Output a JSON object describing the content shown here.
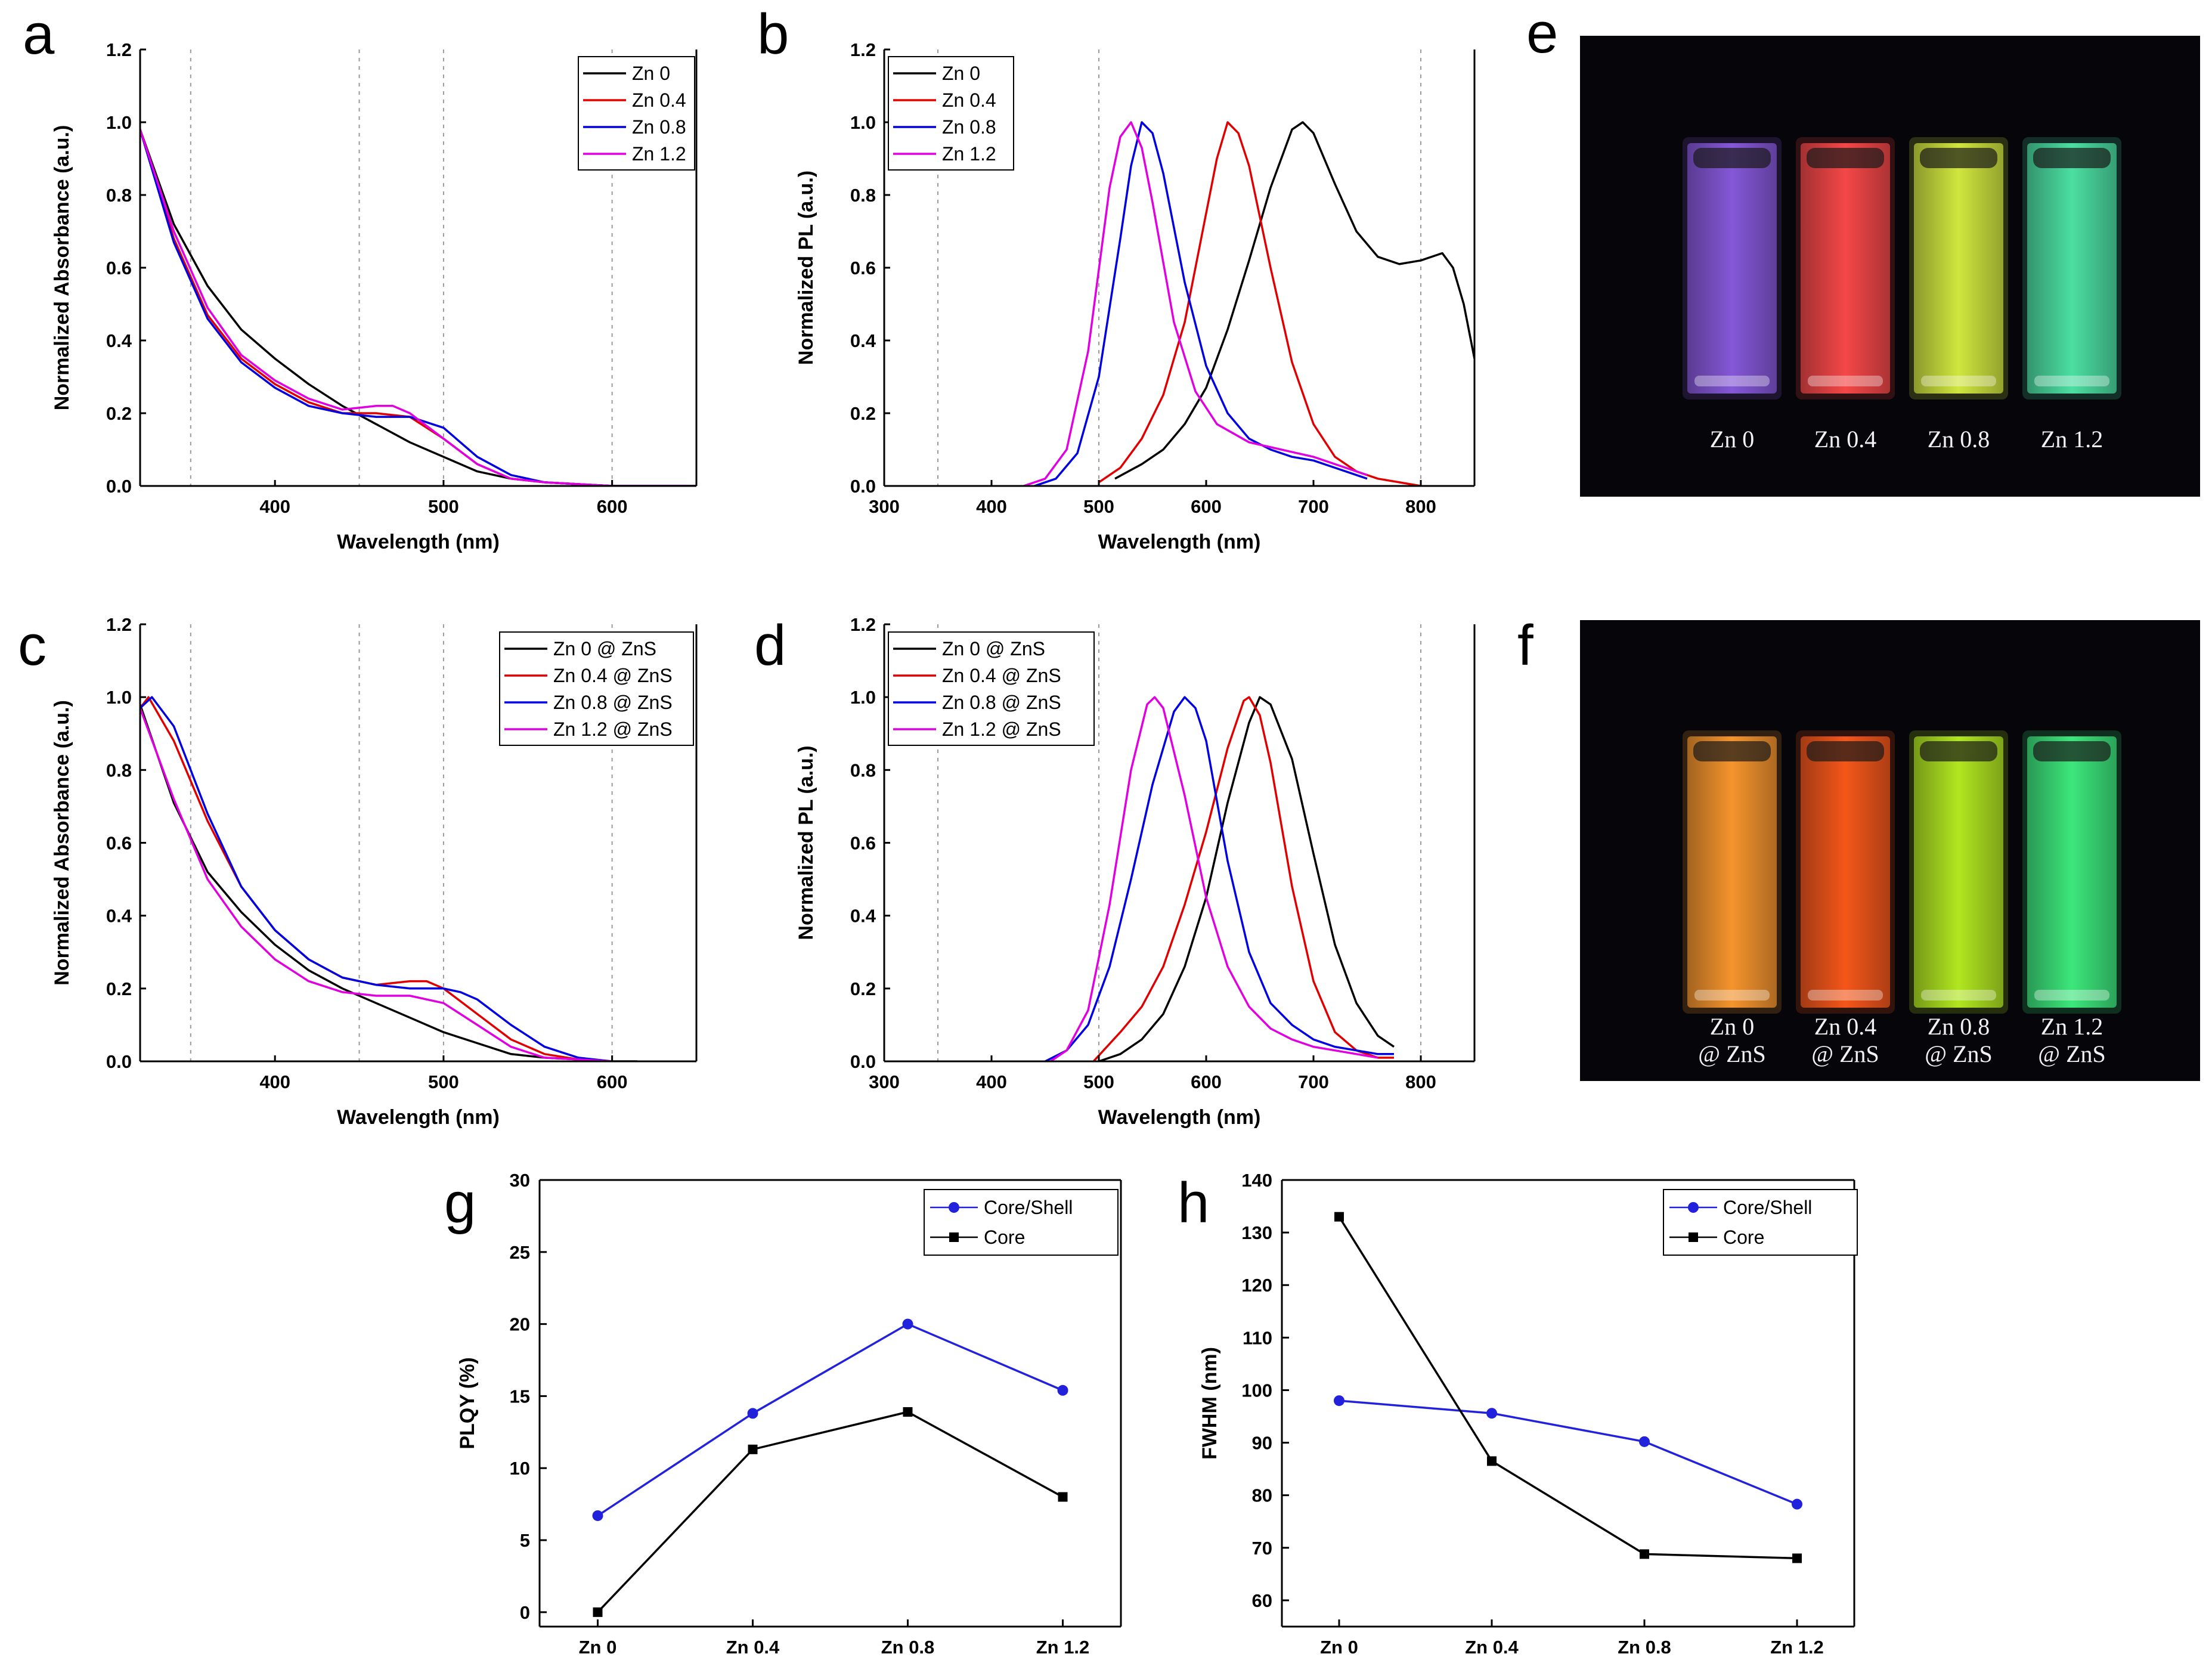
{
  "chart_data": [
    {
      "id": "a",
      "panel": "a",
      "type": "line",
      "xlabel": "Wavelength (nm)",
      "ylabel": "Normalized Absorbance (a.u.)",
      "xlim": [
        320,
        650
      ],
      "ylim": [
        0,
        1.2
      ],
      "xticks": [
        400,
        500,
        600
      ],
      "yticks": [
        0.0,
        0.2,
        0.4,
        0.6,
        0.8,
        1.0,
        1.2
      ],
      "xgrid": [
        350,
        450,
        500,
        600
      ],
      "legend_position": "top-right",
      "series": [
        {
          "name": "Zn 0",
          "color": "#000000",
          "x": [
            320,
            340,
            360,
            380,
            400,
            420,
            440,
            460,
            480,
            500,
            520,
            540,
            560,
            580,
            600,
            650
          ],
          "y": [
            0.98,
            0.72,
            0.55,
            0.43,
            0.35,
            0.28,
            0.22,
            0.17,
            0.12,
            0.08,
            0.04,
            0.02,
            0.01,
            0.005,
            0.0,
            0.0
          ]
        },
        {
          "name": "Zn 0.4",
          "color": "#e00000",
          "x": [
            320,
            340,
            360,
            380,
            400,
            420,
            440,
            460,
            480,
            500,
            520,
            540,
            560,
            580,
            600,
            650
          ],
          "y": [
            0.98,
            0.68,
            0.47,
            0.35,
            0.28,
            0.23,
            0.2,
            0.2,
            0.19,
            0.13,
            0.06,
            0.02,
            0.01,
            0.005,
            0.0,
            0.0
          ]
        },
        {
          "name": "Zn 0.8",
          "color": "#0000e0",
          "x": [
            320,
            340,
            360,
            380,
            400,
            420,
            440,
            460,
            480,
            500,
            520,
            540,
            560,
            580,
            600,
            650
          ],
          "y": [
            0.98,
            0.67,
            0.46,
            0.34,
            0.27,
            0.22,
            0.2,
            0.19,
            0.19,
            0.16,
            0.08,
            0.03,
            0.01,
            0.005,
            0.0,
            0.0
          ]
        },
        {
          "name": "Zn 1.2",
          "color": "#e000e0",
          "x": [
            320,
            340,
            360,
            380,
            400,
            420,
            440,
            460,
            470,
            480,
            500,
            520,
            540,
            560,
            600,
            650
          ],
          "y": [
            0.98,
            0.7,
            0.49,
            0.36,
            0.29,
            0.24,
            0.21,
            0.22,
            0.22,
            0.2,
            0.13,
            0.06,
            0.02,
            0.01,
            0.0,
            0.0
          ]
        }
      ]
    },
    {
      "id": "b",
      "panel": "b",
      "type": "line",
      "xlabel": "Wavelength (nm)",
      "ylabel": "Normalized PL (a.u.)",
      "xlim": [
        300,
        850
      ],
      "ylim": [
        0,
        1.2
      ],
      "xticks": [
        300,
        400,
        500,
        600,
        700,
        800
      ],
      "yticks": [
        0.0,
        0.2,
        0.4,
        0.6,
        0.8,
        1.0,
        1.2
      ],
      "xgrid": [
        350,
        500,
        800
      ],
      "legend_position": "top-left",
      "series": [
        {
          "name": "Zn 0",
          "color": "#000000",
          "x": [
            515,
            540,
            560,
            580,
            600,
            620,
            640,
            660,
            680,
            690,
            700,
            720,
            740,
            760,
            780,
            800,
            820,
            830,
            840,
            850
          ],
          "y": [
            0.02,
            0.06,
            0.1,
            0.17,
            0.27,
            0.43,
            0.62,
            0.82,
            0.98,
            1.0,
            0.97,
            0.83,
            0.7,
            0.63,
            0.61,
            0.62,
            0.64,
            0.6,
            0.5,
            0.35
          ]
        },
        {
          "name": "Zn 0.4",
          "color": "#e00000",
          "x": [
            500,
            520,
            540,
            560,
            580,
            600,
            610,
            620,
            630,
            640,
            660,
            680,
            700,
            720,
            740,
            760,
            780,
            800
          ],
          "y": [
            0.01,
            0.05,
            0.13,
            0.25,
            0.45,
            0.75,
            0.9,
            1.0,
            0.97,
            0.88,
            0.6,
            0.34,
            0.17,
            0.08,
            0.04,
            0.02,
            0.01,
            0.0
          ]
        },
        {
          "name": "Zn 0.8",
          "color": "#0000e0",
          "x": [
            440,
            460,
            480,
            500,
            520,
            530,
            540,
            550,
            560,
            580,
            600,
            620,
            640,
            660,
            680,
            700,
            720,
            750
          ],
          "y": [
            0.0,
            0.02,
            0.09,
            0.3,
            0.68,
            0.88,
            1.0,
            0.97,
            0.86,
            0.56,
            0.33,
            0.2,
            0.13,
            0.1,
            0.08,
            0.07,
            0.05,
            0.02
          ]
        },
        {
          "name": "Zn 1.2",
          "color": "#e000e0",
          "x": [
            430,
            450,
            470,
            490,
            510,
            520,
            530,
            540,
            550,
            570,
            590,
            610,
            640,
            670,
            700,
            730,
            750
          ],
          "y": [
            0.0,
            0.02,
            0.1,
            0.37,
            0.82,
            0.96,
            1.0,
            0.93,
            0.78,
            0.45,
            0.26,
            0.17,
            0.12,
            0.1,
            0.08,
            0.05,
            0.03
          ]
        }
      ]
    },
    {
      "id": "c",
      "panel": "c",
      "type": "line",
      "xlabel": "Wavelength (nm)",
      "ylabel": "Normalized Absorbance (a.u.)",
      "xlim": [
        320,
        650
      ],
      "ylim": [
        0,
        1.2
      ],
      "xticks": [
        400,
        500,
        600
      ],
      "yticks": [
        0.0,
        0.2,
        0.4,
        0.6,
        0.8,
        1.0,
        1.2
      ],
      "xgrid": [
        350,
        450,
        500,
        600
      ],
      "legend_position": "top-right",
      "series": [
        {
          "name": "Zn 0 @ ZnS",
          "color": "#000000",
          "x": [
            320,
            340,
            360,
            380,
            400,
            420,
            440,
            460,
            480,
            500,
            520,
            540,
            560,
            580,
            600,
            615
          ],
          "y": [
            0.98,
            0.71,
            0.52,
            0.41,
            0.32,
            0.25,
            0.2,
            0.16,
            0.12,
            0.08,
            0.05,
            0.02,
            0.01,
            0.005,
            0.0,
            0.0
          ]
        },
        {
          "name": "Zn 0.4 @ ZnS",
          "color": "#e00000",
          "x": [
            320,
            325,
            340,
            360,
            380,
            400,
            420,
            440,
            460,
            480,
            490,
            500,
            520,
            540,
            560,
            580,
            600
          ],
          "y": [
            0.97,
            1.0,
            0.88,
            0.66,
            0.48,
            0.36,
            0.28,
            0.23,
            0.21,
            0.22,
            0.22,
            0.2,
            0.13,
            0.06,
            0.02,
            0.005,
            0.0
          ]
        },
        {
          "name": "Zn 0.8 @ ZnS",
          "color": "#0000e0",
          "x": [
            320,
            327,
            340,
            360,
            380,
            400,
            420,
            440,
            460,
            480,
            500,
            510,
            520,
            540,
            560,
            580,
            600
          ],
          "y": [
            0.97,
            1.0,
            0.92,
            0.68,
            0.48,
            0.36,
            0.28,
            0.23,
            0.21,
            0.2,
            0.2,
            0.19,
            0.17,
            0.1,
            0.04,
            0.01,
            0.0
          ]
        },
        {
          "name": "Zn 1.2 @ ZnS",
          "color": "#e000e0",
          "x": [
            320,
            340,
            360,
            380,
            400,
            420,
            440,
            460,
            480,
            500,
            520,
            540,
            560,
            580,
            600
          ],
          "y": [
            0.97,
            0.72,
            0.5,
            0.37,
            0.28,
            0.22,
            0.19,
            0.18,
            0.18,
            0.16,
            0.1,
            0.04,
            0.01,
            0.005,
            0.0
          ]
        }
      ]
    },
    {
      "id": "d",
      "panel": "d",
      "type": "line",
      "xlabel": "Wavelength (nm)",
      "ylabel": "Normalized PL (a.u.)",
      "xlim": [
        300,
        850
      ],
      "ylim": [
        0,
        1.2
      ],
      "xticks": [
        300,
        400,
        500,
        600,
        700,
        800
      ],
      "yticks": [
        0.0,
        0.2,
        0.4,
        0.6,
        0.8,
        1.0,
        1.2
      ],
      "xgrid": [
        350,
        500,
        800
      ],
      "legend_position": "top-left",
      "series": [
        {
          "name": "Zn 0 @ ZnS",
          "color": "#000000",
          "x": [
            500,
            520,
            540,
            560,
            580,
            600,
            620,
            640,
            650,
            660,
            680,
            700,
            720,
            740,
            760,
            775
          ],
          "y": [
            0.0,
            0.02,
            0.06,
            0.13,
            0.26,
            0.45,
            0.71,
            0.93,
            1.0,
            0.98,
            0.83,
            0.57,
            0.32,
            0.16,
            0.07,
            0.04
          ]
        },
        {
          "name": "Zn 0.4 @ ZnS",
          "color": "#e00000",
          "x": [
            495,
            520,
            540,
            560,
            580,
            600,
            620,
            635,
            640,
            650,
            660,
            680,
            700,
            720,
            740,
            760,
            775
          ],
          "y": [
            0.0,
            0.08,
            0.15,
            0.26,
            0.43,
            0.63,
            0.86,
            0.99,
            1.0,
            0.95,
            0.82,
            0.48,
            0.22,
            0.08,
            0.03,
            0.01,
            0.01
          ]
        },
        {
          "name": "Zn 0.8 @ ZnS",
          "color": "#0000e0",
          "x": [
            450,
            470,
            490,
            510,
            530,
            550,
            570,
            580,
            590,
            600,
            620,
            640,
            660,
            680,
            700,
            720,
            740,
            760,
            775
          ],
          "y": [
            0.0,
            0.03,
            0.1,
            0.26,
            0.5,
            0.76,
            0.96,
            1.0,
            0.97,
            0.88,
            0.55,
            0.3,
            0.16,
            0.1,
            0.06,
            0.04,
            0.03,
            0.02,
            0.02
          ]
        },
        {
          "name": "Zn 1.2 @ ZnS",
          "color": "#e000e0",
          "x": [
            455,
            470,
            490,
            510,
            530,
            545,
            552,
            560,
            580,
            600,
            620,
            640,
            660,
            680,
            700,
            720,
            740,
            760
          ],
          "y": [
            0.0,
            0.03,
            0.14,
            0.43,
            0.8,
            0.98,
            1.0,
            0.97,
            0.73,
            0.45,
            0.26,
            0.15,
            0.09,
            0.06,
            0.04,
            0.03,
            0.02,
            0.01
          ]
        }
      ]
    },
    {
      "id": "g",
      "panel": "g",
      "type": "line",
      "xlabel": "",
      "ylabel": "PLQY (%)",
      "categories": [
        "Zn 0",
        "Zn 0.4",
        "Zn 0.8",
        "Zn 1.2"
      ],
      "ylim": [
        -1,
        30
      ],
      "yticks": [
        0,
        5,
        10,
        15,
        20,
        25,
        30
      ],
      "legend_position": "top-right",
      "series": [
        {
          "name": "Core/Shell",
          "color": "#2222dd",
          "marker": "circle",
          "values": [
            6.7,
            13.8,
            20.0,
            15.4
          ]
        },
        {
          "name": "Core",
          "color": "#000000",
          "marker": "square",
          "values": [
            0.0,
            11.3,
            13.9,
            8.0
          ]
        }
      ]
    },
    {
      "id": "h",
      "panel": "h",
      "type": "line",
      "xlabel": "",
      "ylabel": "FWHM (nm)",
      "categories": [
        "Zn 0",
        "Zn 0.4",
        "Zn 0.8",
        "Zn 1.2"
      ],
      "ylim": [
        55,
        140
      ],
      "yticks": [
        60,
        70,
        80,
        90,
        100,
        110,
        120,
        130,
        140
      ],
      "legend_position": "top-right",
      "series": [
        {
          "name": "Core/Shell",
          "color": "#2222dd",
          "marker": "circle",
          "values": [
            98.0,
            95.6,
            90.2,
            78.3
          ]
        },
        {
          "name": "Core",
          "color": "#000000",
          "marker": "square",
          "values": [
            133.0,
            86.5,
            68.8,
            68.0
          ]
        }
      ]
    }
  ],
  "photos": {
    "e": {
      "panel": "e",
      "labels": [
        [
          "Zn 0"
        ],
        [
          "Zn 0.4"
        ],
        [
          "Zn 0.8"
        ],
        [
          "Zn 1.2"
        ]
      ],
      "vial_colors": [
        "#8a5be0",
        "#ff4a4a",
        "#d8f040",
        "#4fe8a8"
      ]
    },
    "f": {
      "panel": "f",
      "labels": [
        [
          "Zn 0",
          "@ ZnS"
        ],
        [
          "Zn 0.4",
          "@ ZnS"
        ],
        [
          "Zn 0.8",
          "@ ZnS"
        ],
        [
          "Zn 1.2",
          "@ ZnS"
        ]
      ],
      "vial_colors": [
        "#ff9a2e",
        "#ff5a1a",
        "#b8f020",
        "#3ff080"
      ]
    }
  }
}
